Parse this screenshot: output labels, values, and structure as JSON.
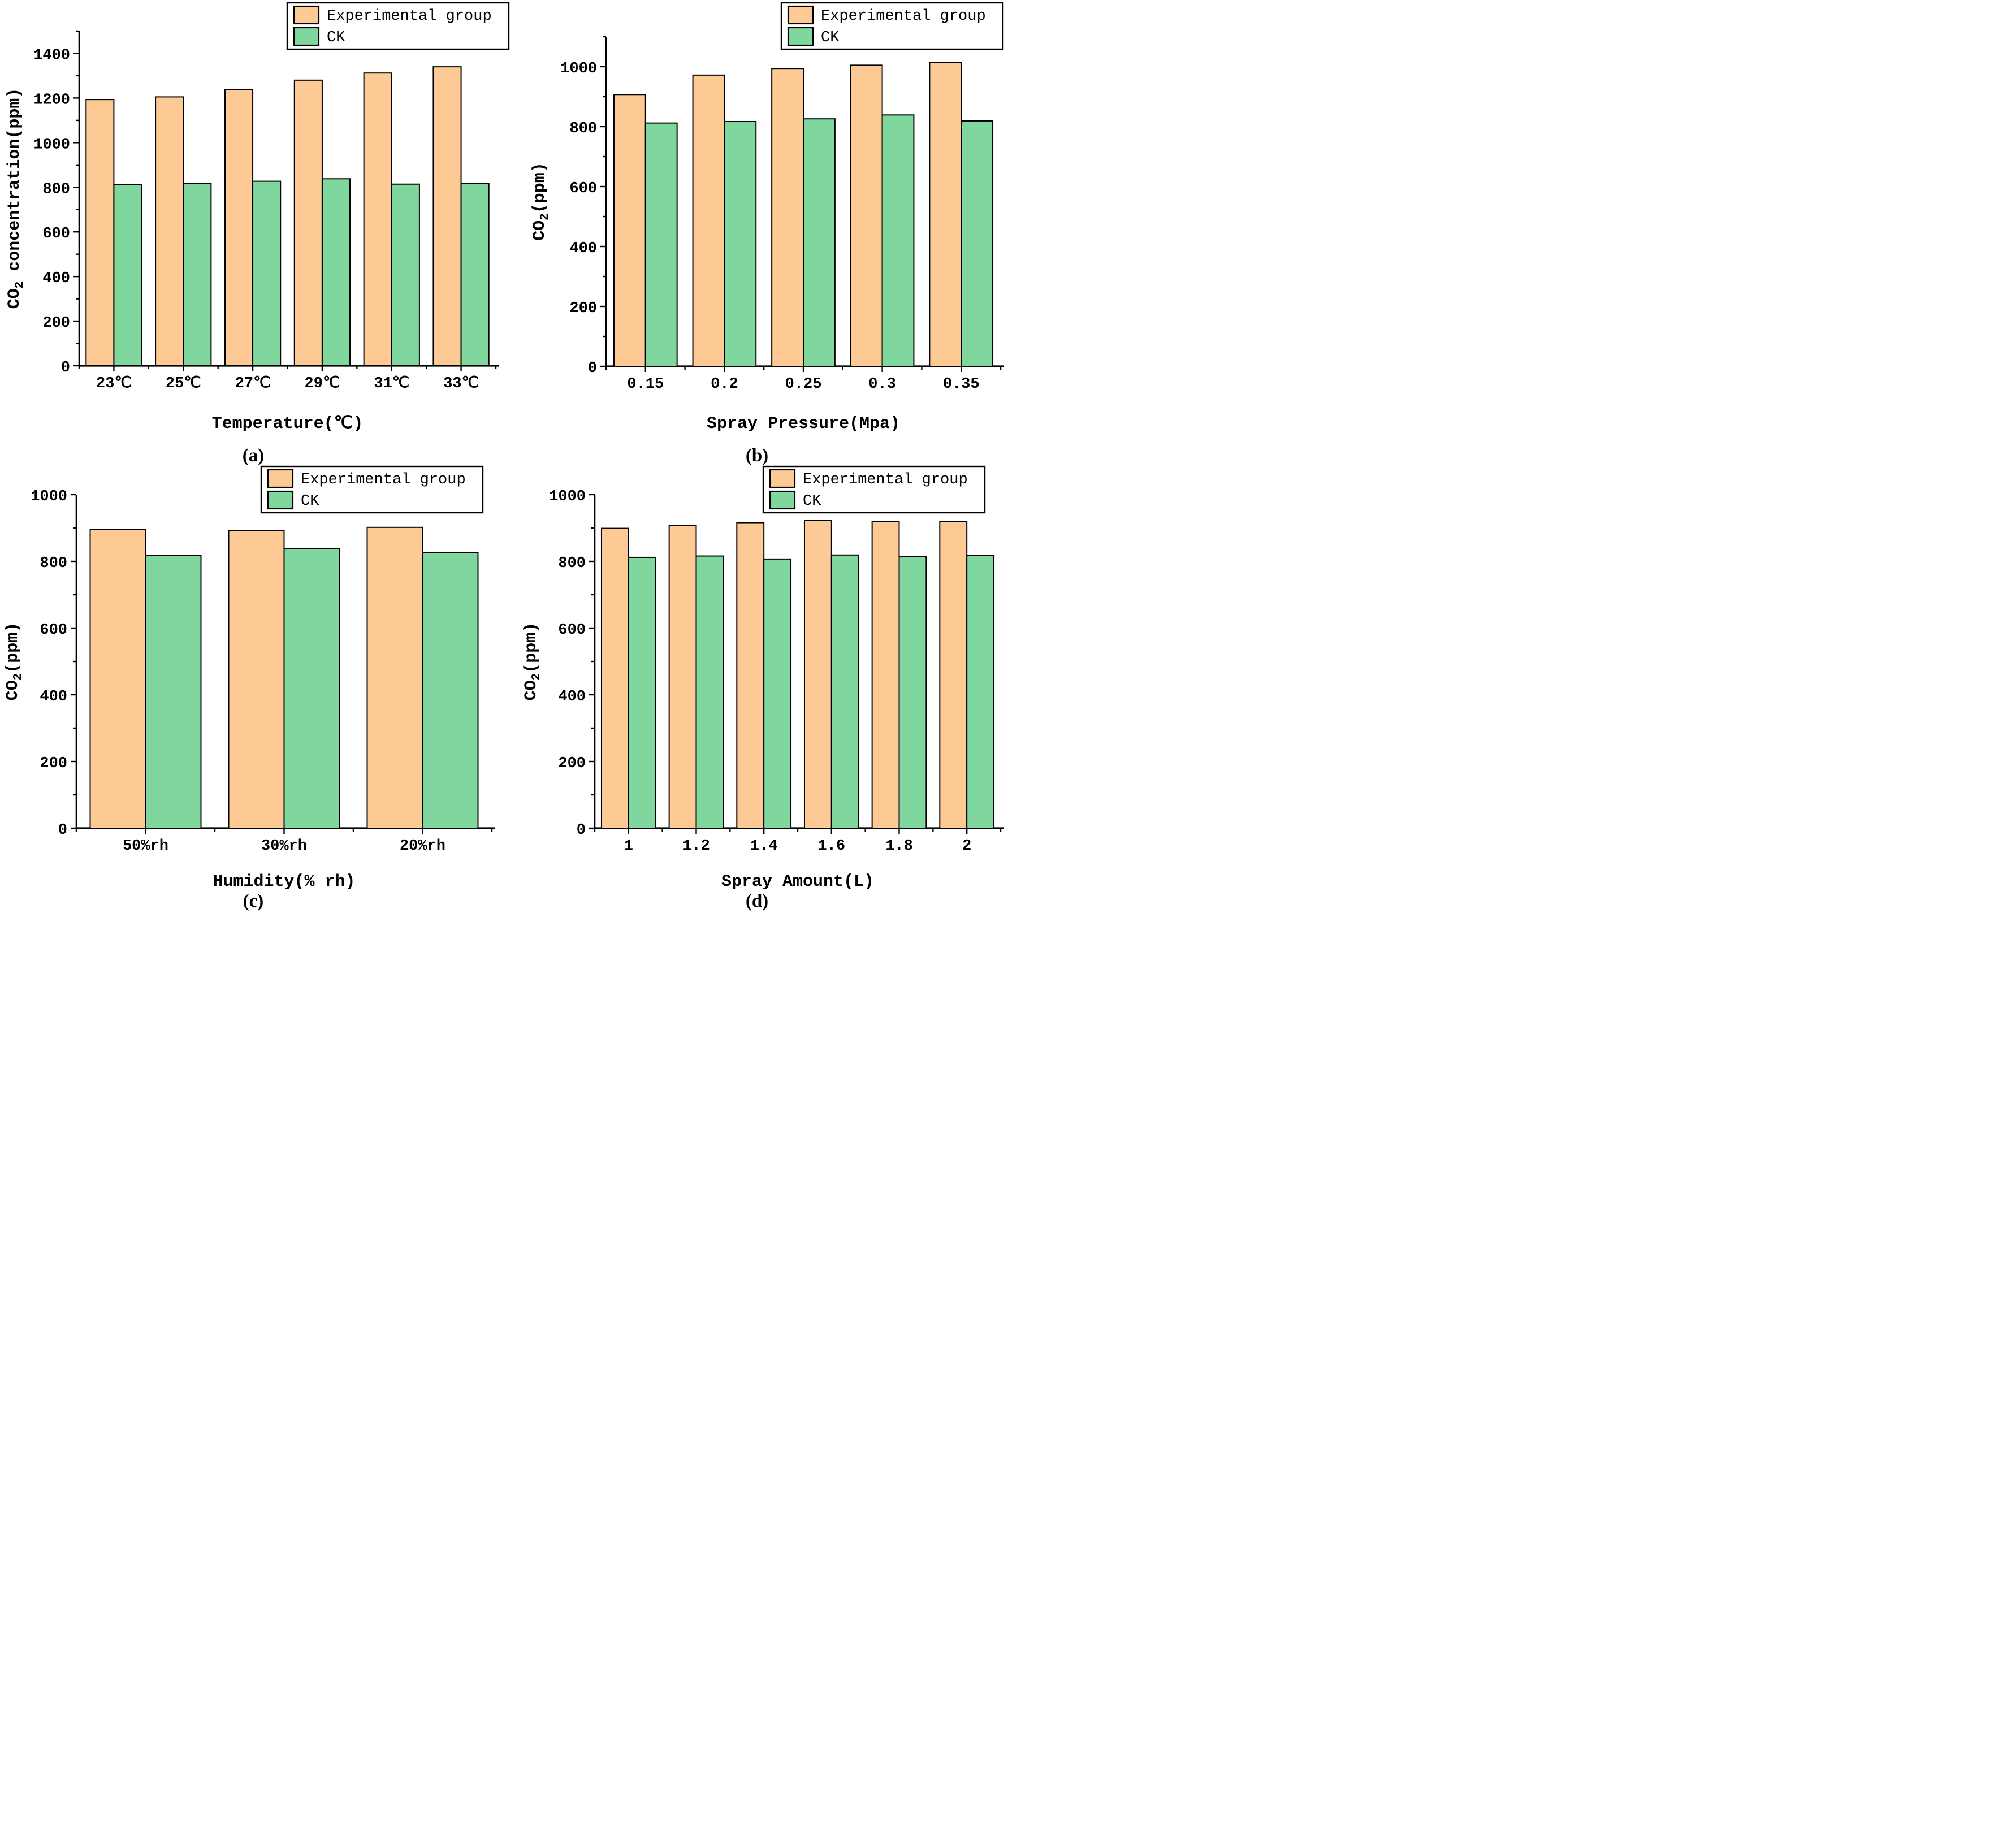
{
  "figure": {
    "background": "#ffffff",
    "axis_color": "#000000",
    "series_colors": {
      "experimental": "#FDC994",
      "ck": "#7FD79E"
    },
    "bar_border_color": "#000000",
    "legend_labels": [
      "Experimental group",
      "CK"
    ]
  },
  "chart_data": [
    {
      "type": "bar",
      "panel_label": "(a)",
      "xlabel": "Temperature(℃)",
      "ylabel": {
        "pre": "CO",
        "sub": "2",
        "post": " concentration(ppm)"
      },
      "categories": [
        "23℃",
        "25℃",
        "27℃",
        "29℃",
        "31℃",
        "33℃"
      ],
      "series": [
        {
          "name": "Experimental group",
          "values": [
            1193,
            1205,
            1237,
            1280,
            1312,
            1340
          ]
        },
        {
          "name": "CK",
          "values": [
            812,
            816,
            827,
            838,
            814,
            818
          ]
        }
      ],
      "ylim": [
        0,
        1500
      ],
      "ytick_major_step": 200,
      "ytick_minor_step": 100,
      "ytick_label_max": 1400,
      "grid": false,
      "legend_position": "top-right"
    },
    {
      "type": "bar",
      "panel_label": "(b)",
      "xlabel": "Spray Pressure(Mpa)",
      "ylabel": {
        "pre": "CO",
        "sub": "2",
        "post": "(ppm)"
      },
      "categories": [
        "0.15",
        "0.2",
        "0.25",
        "0.3",
        "0.35"
      ],
      "series": [
        {
          "name": "Experimental group",
          "values": [
            907,
            972,
            994,
            1005,
            1014
          ]
        },
        {
          "name": "CK",
          "values": [
            812,
            817,
            826,
            839,
            819
          ]
        }
      ],
      "ylim": [
        0,
        1100
      ],
      "ytick_major_step": 200,
      "ytick_minor_step": 100,
      "ytick_label_max": 1000,
      "grid": false,
      "legend_position": "top-right"
    },
    {
      "type": "bar",
      "panel_label": "(c)",
      "xlabel": "Humidity(% rh)",
      "ylabel": {
        "pre": "CO",
        "sub": "2",
        "post": "(ppm)"
      },
      "categories": [
        "50%rh",
        "30%rh",
        "20%rh"
      ],
      "series": [
        {
          "name": "Experimental group",
          "values": [
            896,
            893,
            902
          ]
        },
        {
          "name": "CK",
          "values": [
            817,
            839,
            826
          ]
        }
      ],
      "ylim": [
        0,
        1000
      ],
      "ytick_major_step": 200,
      "ytick_minor_step": 100,
      "ytick_label_max": 1000,
      "grid": false,
      "legend_position": "top-right"
    },
    {
      "type": "bar",
      "panel_label": "(d)",
      "xlabel": "Spray Amount(L)",
      "ylabel": {
        "pre": "CO",
        "sub": "2",
        "post": "(ppm)"
      },
      "categories": [
        "1",
        "1.2",
        "1.4",
        "1.6",
        "1.8",
        "2"
      ],
      "series": [
        {
          "name": "Experimental group",
          "values": [
            899,
            907,
            916,
            923,
            920,
            919
          ]
        },
        {
          "name": "CK",
          "values": [
            812,
            816,
            807,
            819,
            815,
            818
          ]
        }
      ],
      "ylim": [
        0,
        1000
      ],
      "ytick_major_step": 200,
      "ytick_minor_step": 100,
      "ytick_label_max": 1000,
      "grid": false,
      "legend_position": "top-right"
    }
  ]
}
